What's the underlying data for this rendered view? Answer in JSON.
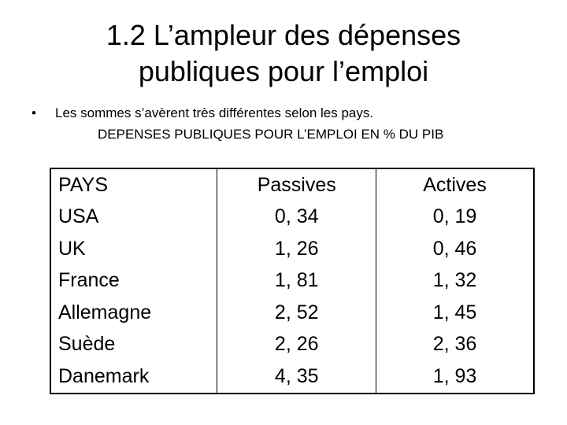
{
  "title": {
    "line1": "1.2 L’ampleur des dépenses",
    "line2": "publiques pour l’emploi"
  },
  "bullet": {
    "symbol": "•",
    "text": "Les sommes s’avèrent très différentes selon les pays."
  },
  "table_caption": "DEPENSES PUBLIQUES POUR L’EMPLOI EN % DU PIB",
  "table": {
    "headers": [
      "PAYS",
      "Passives",
      "Actives"
    ],
    "rows": [
      [
        "USA",
        "0, 34",
        "0, 19"
      ],
      [
        "UK",
        "1, 26",
        "0, 46"
      ],
      [
        "France",
        "1, 81",
        "1, 32"
      ],
      [
        "Allemagne",
        "2, 52",
        "1, 45"
      ],
      [
        "Suède",
        "2, 26",
        "2, 36"
      ],
      [
        "Danemark",
        "4, 35",
        "1, 93"
      ]
    ]
  }
}
